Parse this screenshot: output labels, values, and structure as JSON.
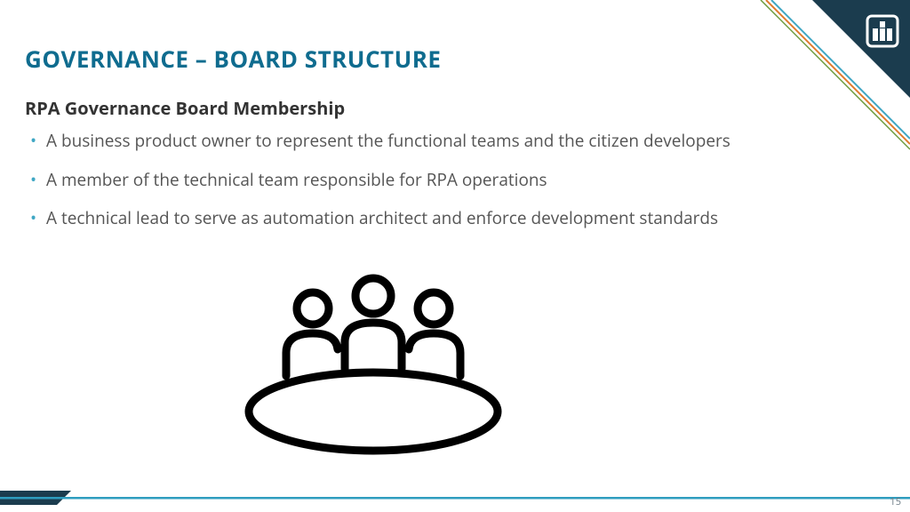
{
  "colors": {
    "title": "#0f6c8f",
    "subtitle": "#333333",
    "body_text": "#555555",
    "bullet": "#3fa7c4",
    "corner_dark": "#1b3c4e",
    "corner_edge1": "#e07b2e",
    "corner_edge2": "#3fa7c4",
    "footer_line": "#2e9dbf",
    "footer_wedge": "#1b3c4e",
    "page_number": "#6b7b85",
    "icon_stroke": "#000000",
    "logo_fill": "#ffffff"
  },
  "title": "GOVERNANCE – BOARD STRUCTURE",
  "subtitle": "RPA Governance Board Membership",
  "bullets": [
    "A business product owner to represent the functional teams and the citizen developers",
    "A member of the technical team responsible for RPA operations",
    "A technical lead to serve as automation architect and enforce development standards"
  ],
  "page_number": "15",
  "typography": {
    "title_fontsize": 26,
    "subtitle_fontsize": 20,
    "body_fontsize": 19,
    "page_number_fontsize": 11
  }
}
